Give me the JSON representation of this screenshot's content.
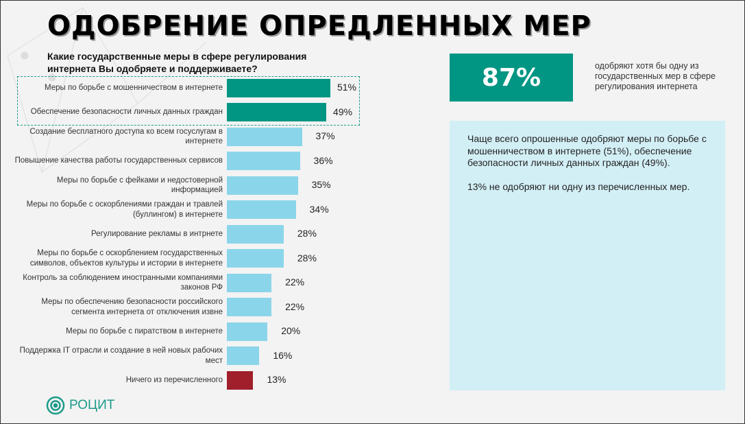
{
  "title": "ОДОБРЕНИЕ ОПРЕДЛЕННЫХ МЕР",
  "question": "Какие государственные меры в сфере регулирования интернета Вы одобряете и поддерживаете?",
  "highlight": {
    "value": "87%",
    "text": "одобряют хотя бы одну из государственных мер в сфере регулирования интернета"
  },
  "panel": {
    "p1": "Чаще всего опрошенные одобряют меры по борьбе с мошенничеством в интернете (51%), обеспечение безопасности личных данных граждан (49%).",
    "p2": "13% не одобряют ни одну из перечисленных мер."
  },
  "logo": "РОЦИТ",
  "colors": {
    "top": "#009683",
    "normal": "#8ad5ea",
    "none": "#a01f2b"
  },
  "chart_data": {
    "type": "bar",
    "orientation": "horizontal",
    "unit": "%",
    "categories": [
      "Меры по борьбе с мошенничеством в интернете",
      "Обеспечение безопасности личных данных граждан",
      "Создание бесплатного доступа ко всем госуслугам в интернете",
      "Повышение качества работы государственных сервисов",
      "Меры по борьбе с фейками и недостоверной информацией",
      "Меры по борьбе с оскорблениями граждан и травлей (буллингом) в интернете",
      "Регулирование рекламы в интрнете",
      "Меры по борьбе с оскорблением государственных символов, объектов культуры и истории в интернете",
      "Контроль за соблюдением иностранными компаниями законов РФ",
      "Меры по обеспечению безопасности российского сегмента интернета от отключения извне",
      "Меры по борьбе с пиратством в интернете",
      "Поддержка IT отрасли и создание в ней новых рабочих мест",
      "Ничего из перечисленного"
    ],
    "values": [
      51,
      49,
      37,
      36,
      35,
      34,
      28,
      28,
      22,
      22,
      20,
      16,
      13
    ],
    "labels": [
      "51%",
      "49%",
      "37%",
      "36%",
      "35%",
      "34%",
      "28%",
      "28%",
      "22%",
      "22%",
      "20%",
      "16%",
      "13%"
    ],
    "groups": [
      "top",
      "top",
      "normal",
      "normal",
      "normal",
      "normal",
      "normal",
      "normal",
      "normal",
      "normal",
      "normal",
      "normal",
      "none"
    ]
  }
}
